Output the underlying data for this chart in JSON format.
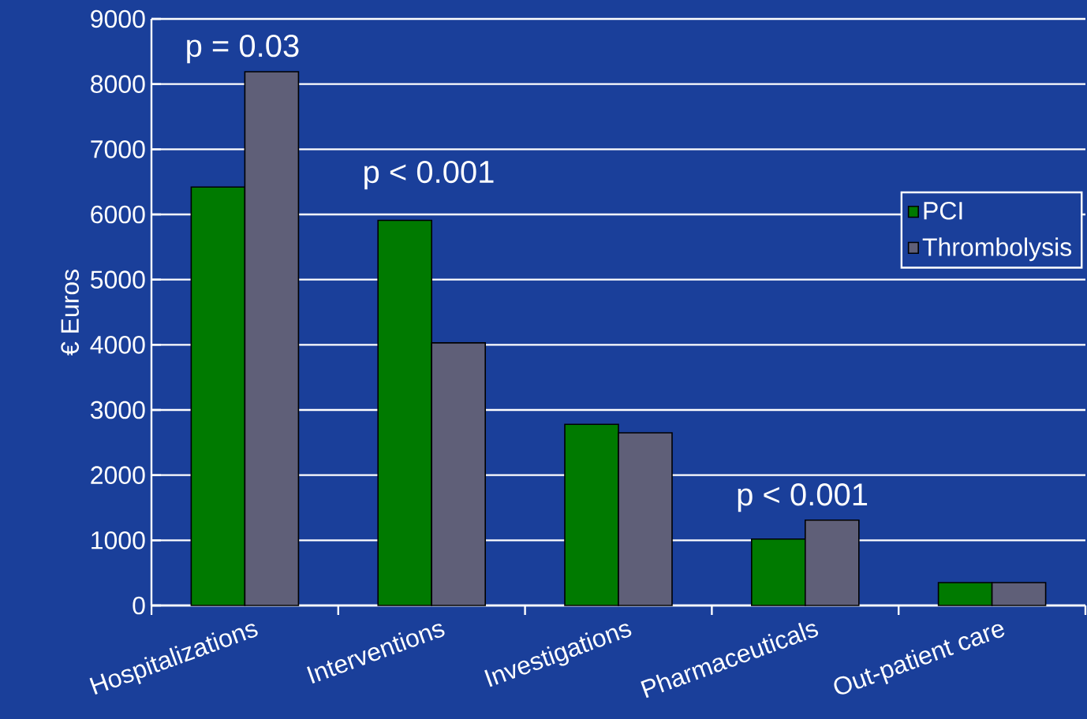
{
  "chart_data": {
    "type": "bar",
    "ylabel": "€ Euros",
    "categories": [
      "Hospitalizations",
      "Interventions",
      "Investigations",
      "Pharmaceuticals",
      "Out-patient care"
    ],
    "series": [
      {
        "name": "PCI",
        "color": "#007a00",
        "values": [
          6420,
          5910,
          2780,
          1020,
          350
        ]
      },
      {
        "name": "Thrombolysis",
        "color": "#5f5f78",
        "values": [
          8190,
          4030,
          2650,
          1310,
          350
        ]
      }
    ],
    "ylim": [
      0,
      9000
    ],
    "yticks": [
      0,
      1000,
      2000,
      3000,
      4000,
      5000,
      6000,
      7000,
      8000,
      9000
    ],
    "grid": "y",
    "legend": "right",
    "annotations": [
      "p = 0.03",
      "p < 0.001",
      "p < 0.001"
    ]
  }
}
